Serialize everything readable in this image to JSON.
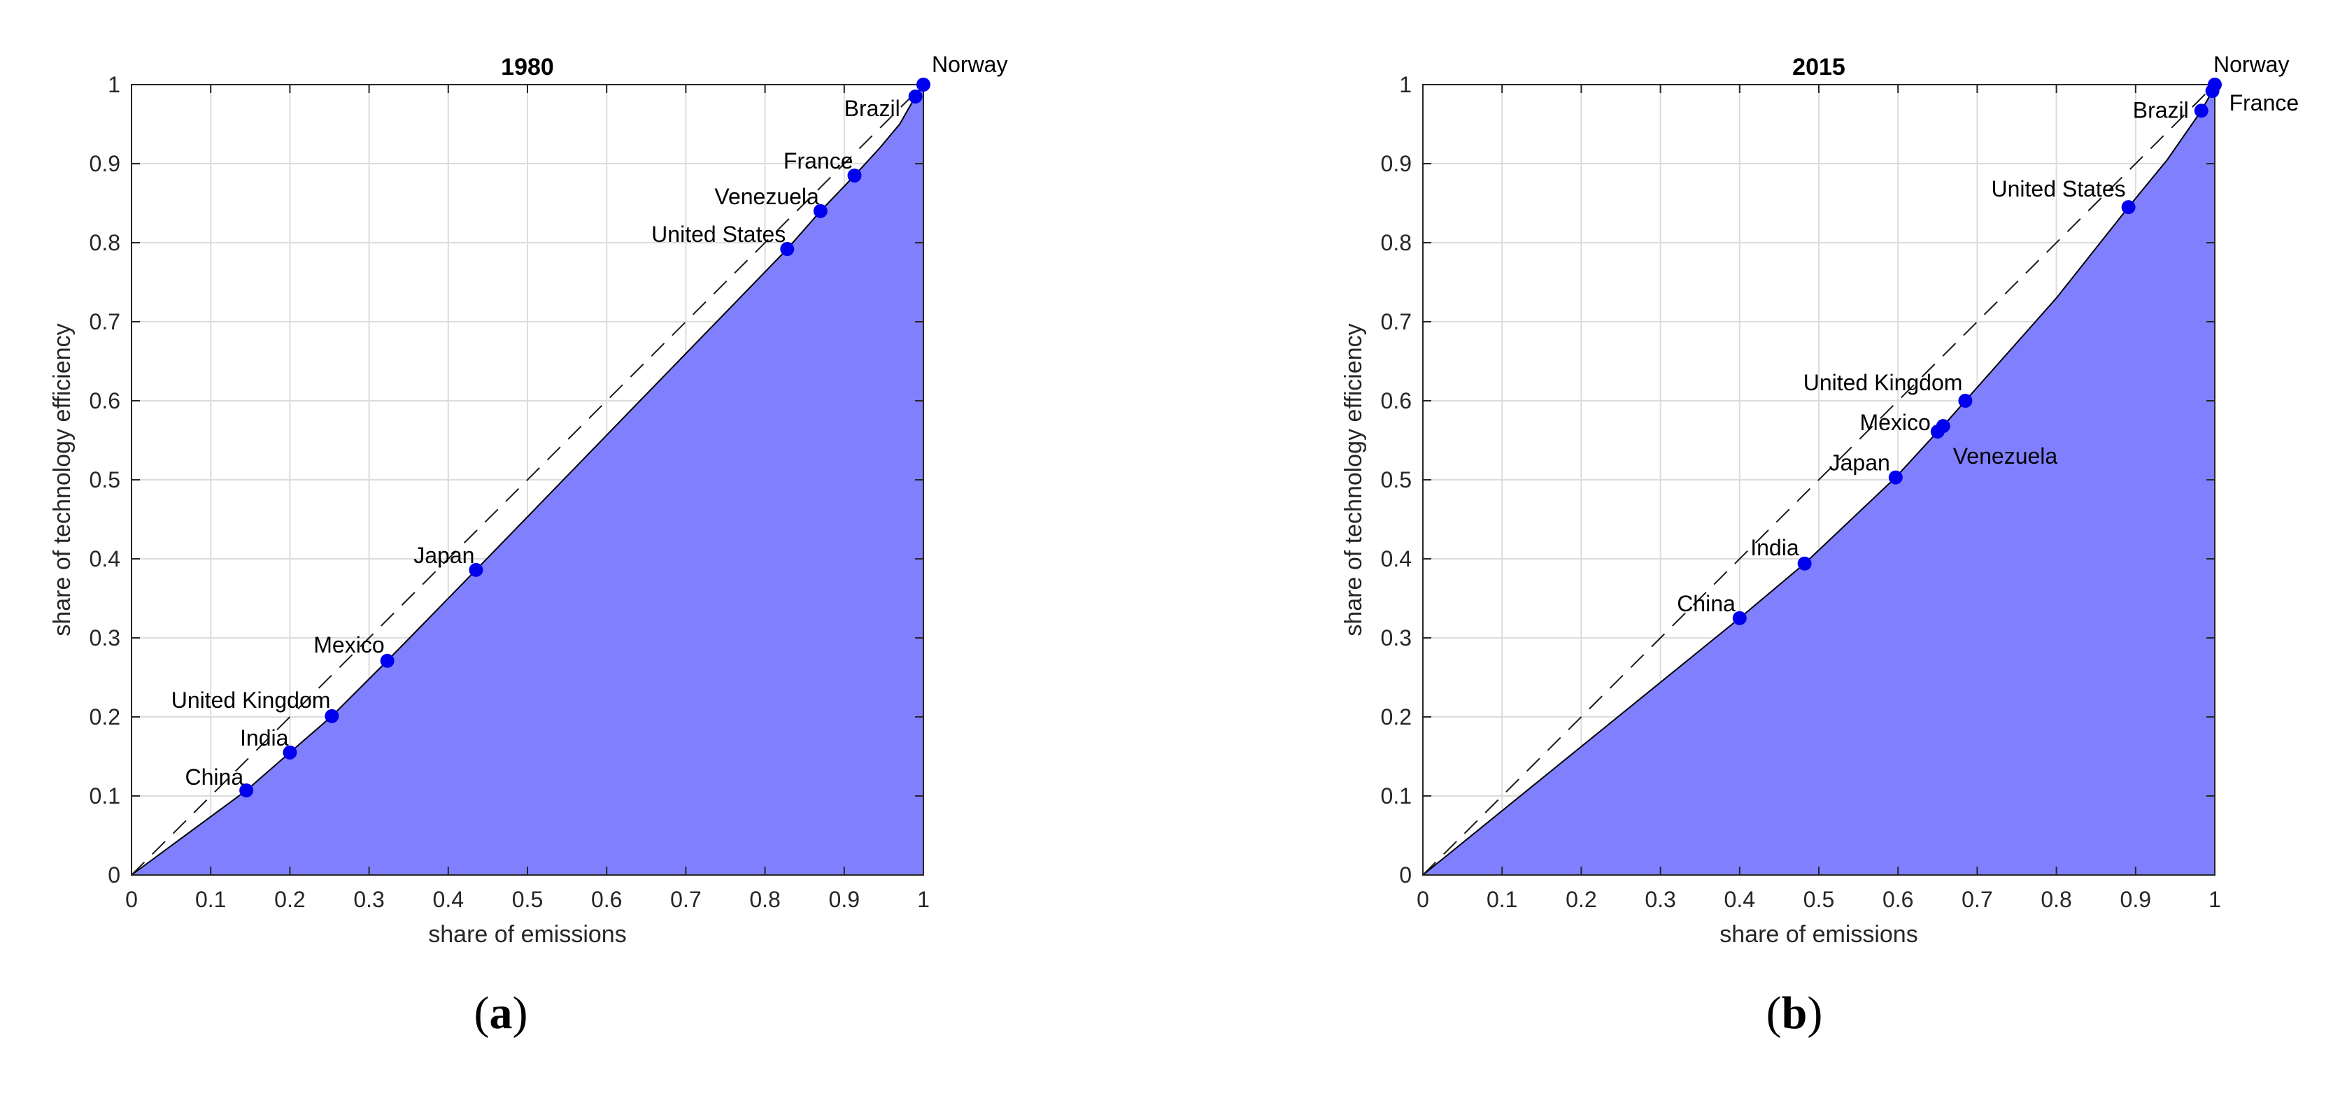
{
  "chart_data": [
    {
      "type": "area",
      "panel_label": "a",
      "title": "1980",
      "xlabel": "share of emissions",
      "ylabel": "share of technology efficiency",
      "xlim": [
        0,
        1
      ],
      "ylim": [
        0,
        1
      ],
      "xticks": [
        "0",
        "0.1",
        "0.2",
        "0.3",
        "0.4",
        "0.5",
        "0.6",
        "0.7",
        "0.8",
        "0.9",
        "1"
      ],
      "yticks": [
        "0",
        "0.1",
        "0.2",
        "0.3",
        "0.4",
        "0.5",
        "0.6",
        "0.7",
        "0.8",
        "0.9",
        "1"
      ],
      "grid": true,
      "fill_color": "#8080ff",
      "point_color": "#0000ee",
      "curve": [
        [
          0,
          0
        ],
        [
          0.145,
          0.107
        ],
        [
          0.2,
          0.155
        ],
        [
          0.253,
          0.201
        ],
        [
          0.323,
          0.271
        ],
        [
          0.435,
          0.386
        ],
        [
          0.828,
          0.792
        ],
        [
          0.87,
          0.84
        ],
        [
          0.913,
          0.885
        ],
        [
          0.945,
          0.92
        ],
        [
          0.97,
          0.95
        ],
        [
          0.99,
          0.985
        ],
        [
          1,
          1
        ]
      ],
      "points": [
        {
          "label": "China",
          "x": 0.145,
          "y": 0.107
        },
        {
          "label": "India",
          "x": 0.2,
          "y": 0.155
        },
        {
          "label": "United Kingdom",
          "x": 0.253,
          "y": 0.201
        },
        {
          "label": "Mexico",
          "x": 0.323,
          "y": 0.271
        },
        {
          "label": "Japan",
          "x": 0.435,
          "y": 0.386
        },
        {
          "label": "United States",
          "x": 0.828,
          "y": 0.792
        },
        {
          "label": "Venezuela",
          "x": 0.87,
          "y": 0.84
        },
        {
          "label": "France",
          "x": 0.913,
          "y": 0.885
        },
        {
          "label": "Brazil",
          "x": 0.99,
          "y": 0.985
        },
        {
          "label": "Norway",
          "x": 1.0,
          "y": 1.0
        }
      ]
    },
    {
      "type": "area",
      "panel_label": "b",
      "title": "2015",
      "xlabel": "share of emissions",
      "ylabel": "share of technology efficiency",
      "xlim": [
        0,
        1
      ],
      "ylim": [
        0,
        1
      ],
      "xticks": [
        "0",
        "0.1",
        "0.2",
        "0.3",
        "0.4",
        "0.5",
        "0.6",
        "0.7",
        "0.8",
        "0.9",
        "1"
      ],
      "yticks": [
        "0",
        "0.1",
        "0.2",
        "0.3",
        "0.4",
        "0.5",
        "0.6",
        "0.7",
        "0.8",
        "0.9",
        "1"
      ],
      "grid": true,
      "fill_color": "#8080ff",
      "point_color": "#0000ee",
      "curve": [
        [
          0,
          0
        ],
        [
          0.4,
          0.325
        ],
        [
          0.482,
          0.394
        ],
        [
          0.597,
          0.503
        ],
        [
          0.65,
          0.561
        ],
        [
          0.657,
          0.568
        ],
        [
          0.685,
          0.6
        ],
        [
          0.8,
          0.73
        ],
        [
          0.891,
          0.845
        ],
        [
          0.94,
          0.905
        ],
        [
          0.983,
          0.967
        ],
        [
          0.997,
          0.992
        ],
        [
          1.0,
          1.0
        ]
      ],
      "points": [
        {
          "label": "China",
          "x": 0.4,
          "y": 0.325
        },
        {
          "label": "India",
          "x": 0.482,
          "y": 0.394
        },
        {
          "label": "Japan",
          "x": 0.597,
          "y": 0.503
        },
        {
          "label": "Mexico",
          "x": 0.65,
          "y": 0.561
        },
        {
          "label": "Venezuela",
          "x": 0.657,
          "y": 0.568
        },
        {
          "label": "United Kingdom",
          "x": 0.685,
          "y": 0.6
        },
        {
          "label": "United States",
          "x": 0.891,
          "y": 0.845
        },
        {
          "label": "Brazil",
          "x": 0.983,
          "y": 0.967
        },
        {
          "label": "France",
          "x": 0.997,
          "y": 0.992
        },
        {
          "label": "Norway",
          "x": 1.0,
          "y": 1.0
        }
      ]
    }
  ]
}
